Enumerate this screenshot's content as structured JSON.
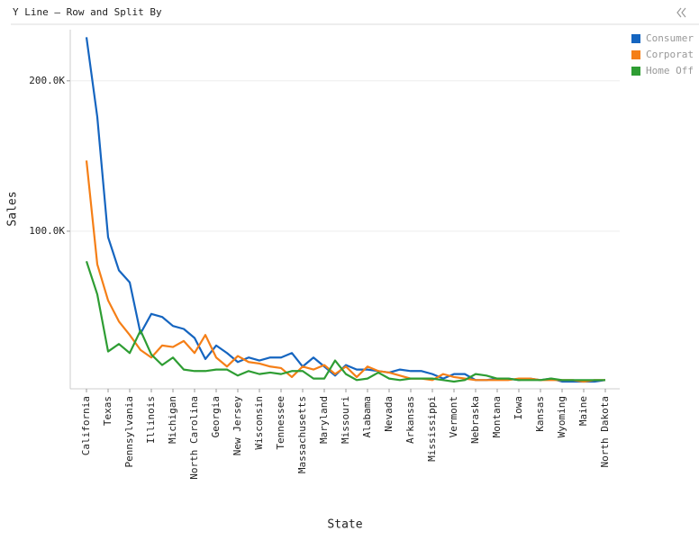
{
  "chart_data": {
    "type": "line",
    "title": "Y Line – Row and Split By",
    "x_label": "State",
    "y_label": "Sales",
    "categories": [
      "California",
      null,
      "Texas",
      null,
      "Pennsylvania",
      null,
      "Illinois",
      null,
      "Michigan",
      null,
      "North Carolina",
      null,
      "Georgia",
      null,
      "New Jersey",
      null,
      "Wisconsin",
      null,
      "Tennessee",
      null,
      "Massachusetts",
      null,
      "Maryland",
      null,
      "Missouri",
      null,
      "Alabama",
      null,
      "Nevada",
      null,
      "Arkansas",
      null,
      "Mississippi",
      null,
      "Vermont",
      null,
      "Nebraska",
      null,
      "Montana",
      null,
      "Iowa",
      null,
      "Kansas",
      null,
      "Wyoming",
      null,
      "Maine",
      null,
      "North Dakota"
    ],
    "series": [
      {
        "name": "Consumer",
        "color": "#1565c0",
        "values": [
          229000,
          176000,
          96000,
          74000,
          66000,
          32000,
          45000,
          43000,
          37000,
          35000,
          29000,
          15000,
          24000,
          19000,
          13000,
          16000,
          14000,
          16000,
          16000,
          19000,
          10000,
          16000,
          10000,
          4000,
          11000,
          8000,
          8000,
          7000,
          6000,
          8000,
          7000,
          7000,
          5000,
          2000,
          5000,
          5000,
          1000,
          1000,
          2000,
          2000,
          1000,
          2000,
          1000,
          2000,
          0,
          0,
          0,
          0,
          1000
        ]
      },
      {
        "name": "Corporat",
        "color": "#f57f17",
        "values": [
          147000,
          78000,
          54000,
          40000,
          31000,
          21000,
          16000,
          24000,
          23000,
          27000,
          19000,
          31000,
          16000,
          10000,
          17000,
          13000,
          12000,
          10000,
          9000,
          3000,
          10000,
          8000,
          11000,
          5000,
          10000,
          3000,
          10000,
          7000,
          6000,
          4000,
          2000,
          2000,
          1000,
          5000,
          3000,
          2000,
          1000,
          1000,
          1000,
          1000,
          2000,
          2000,
          1000,
          1000,
          1000,
          1000,
          0,
          1000,
          1000
        ]
      },
      {
        "name": "Home Off",
        "color": "#2e9d33",
        "values": [
          80000,
          58000,
          20000,
          25000,
          19000,
          34000,
          18000,
          11000,
          16000,
          8000,
          7000,
          7000,
          8000,
          8000,
          4000,
          7000,
          5000,
          6000,
          5000,
          7000,
          7000,
          2000,
          2000,
          14000,
          5000,
          1000,
          2000,
          6000,
          2000,
          1000,
          2000,
          2000,
          2000,
          1000,
          0,
          1000,
          5000,
          4000,
          2000,
          2000,
          1000,
          1000,
          1000,
          2000,
          1000,
          1000,
          1000,
          1000,
          1000
        ]
      }
    ],
    "ylim": [
      -4800,
      234000
    ],
    "yticks": [
      {
        "value": 100000,
        "label": "100.0K"
      },
      {
        "value": 200000,
        "label": "200.0K"
      }
    ],
    "grid": true,
    "legend": "right"
  }
}
